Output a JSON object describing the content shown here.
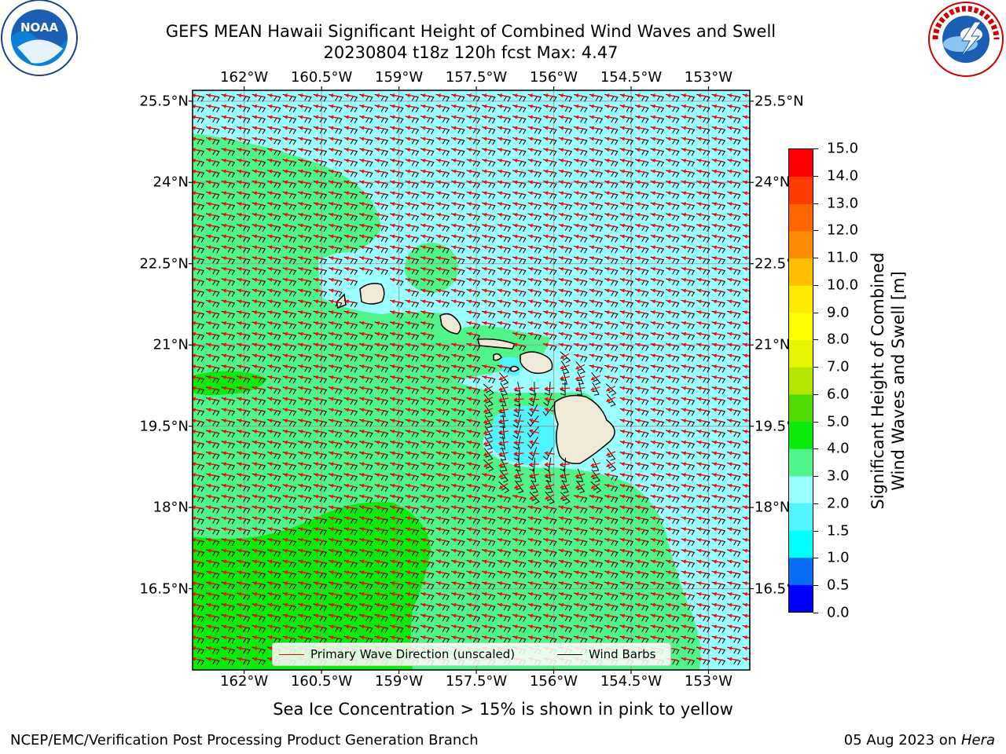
{
  "title": {
    "line1": "GEFS MEAN Hawaii Significant Height of Combined Wind Waves and Swell",
    "line2": "20230804 t18z 120h fcst   Max: 4.47"
  },
  "map": {
    "lon_ticks": [
      "162°W",
      "160.5°W",
      "159°W",
      "157.5°W",
      "156°W",
      "154.5°W",
      "153°W"
    ],
    "lat_ticks": [
      "25.5°N",
      "24°N",
      "22.5°N",
      "21°N",
      "19.5°N",
      "18°N",
      "16.5°N"
    ],
    "lon_values": [
      -162,
      -160.5,
      -159,
      -157.5,
      -156,
      -154.5,
      -153
    ],
    "lat_values": [
      25.5,
      24,
      22.5,
      21,
      19.5,
      18,
      16.5
    ],
    "lon_range": [
      -163.0,
      -152.2
    ],
    "lat_range": [
      15.0,
      25.7
    ],
    "gridlines": true
  },
  "legend": {
    "wave_label": "Primary Wave Direction (unscaled)",
    "barb_label": "Wind Barbs",
    "wave_color": "#ff0000",
    "barb_color": "#000000"
  },
  "colorbar": {
    "label_line1": "Significant Height of Combined",
    "label_line2": "Wind Waves and Swell [m]",
    "levels": [
      "0.0",
      "0.5",
      "1.0",
      "1.5",
      "2.0",
      "3.0",
      "4.0",
      "5.0",
      "6.0",
      "7.0",
      "8.0",
      "9.0",
      "10.0",
      "11.0",
      "12.0",
      "13.0",
      "14.0",
      "15.0"
    ],
    "colors": [
      "#0000ff",
      "#0a6ef5",
      "#00ffff",
      "#50f5ff",
      "#9affff",
      "#50f58a",
      "#0aeb0a",
      "#50dc00",
      "#b4e600",
      "#e6f500",
      "#ffff00",
      "#ffeb00",
      "#ffbe00",
      "#ff8c00",
      "#ff6400",
      "#ff3c00",
      "#ff0000"
    ]
  },
  "note": "Sea Ice Concentration > 15% is shown in pink to yellow",
  "footer": {
    "left": "NCEP/EMC/Verification Post Processing Product Generation Branch",
    "right_prefix": "05 Aug 2023 on ",
    "right_host": "Hera"
  },
  "logos": {
    "noaa_text": "NOAA",
    "noaa_icon": "noaa-logo",
    "nws_icon": "nws-logo"
  }
}
